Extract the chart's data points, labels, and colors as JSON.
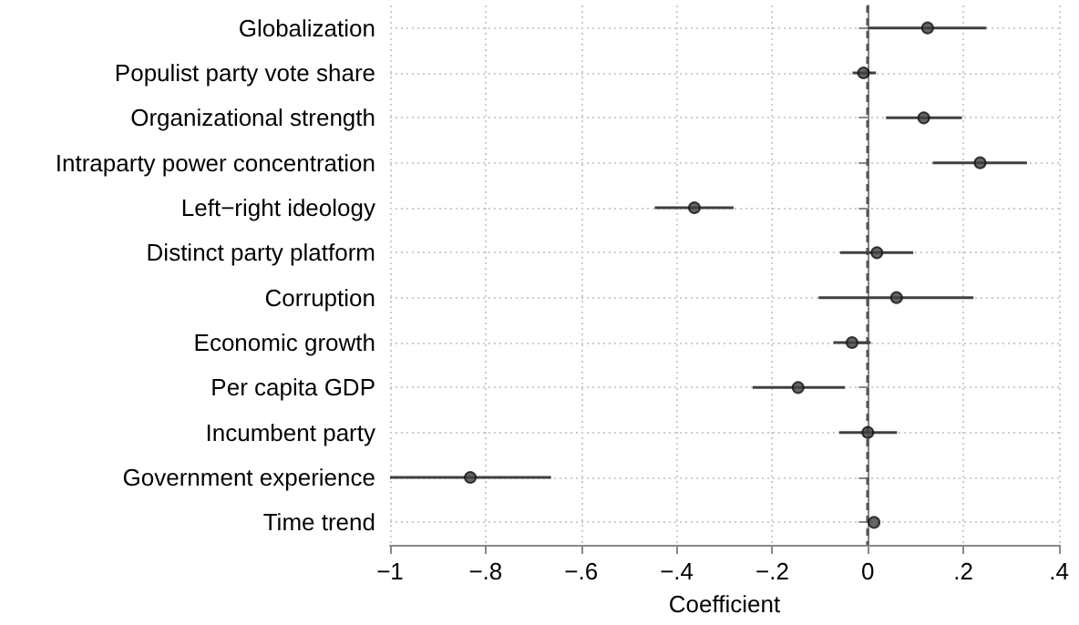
{
  "chart_data": {
    "type": "scatter",
    "orientation": "horizontal",
    "xlabel": "Coefficient",
    "categories": [
      "Globalization",
      "Populist party vote share",
      "Organizational strength",
      "Intraparty power concentration",
      "Left−right ideology",
      "Distinct party platform",
      "Corruption",
      "Economic growth",
      "Per capita GDP",
      "Incumbent party",
      "Government experience",
      "Time trend"
    ],
    "values": [
      0.125,
      -0.009,
      0.117,
      0.235,
      -0.363,
      0.019,
      0.06,
      -0.033,
      -0.146,
      0,
      -0.832,
      0.013
    ],
    "errors": [
      [
        0,
        0.248
      ],
      [
        -0.032,
        0.017
      ],
      [
        0.038,
        0.197
      ],
      [
        0.136,
        0.333
      ],
      [
        -0.446,
        -0.281
      ],
      [
        -0.058,
        0.095
      ],
      [
        -0.103,
        0.221
      ],
      [
        -0.072,
        0.006
      ],
      [
        -0.241,
        -0.048
      ],
      [
        -0.06,
        0.061
      ],
      [
        -1,
        -0.663
      ],
      null
    ],
    "color": "#404040",
    "xlim": [
      -1,
      0.4
    ],
    "xticks": [
      {
        "value": -1,
        "label": "−1"
      },
      {
        "value": -0.8,
        "label": "−.8"
      },
      {
        "value": -0.6,
        "label": "−.6"
      },
      {
        "value": -0.4,
        "label": "−.4"
      },
      {
        "value": -0.2,
        "label": "−.2"
      },
      {
        "value": 0,
        "label": "0"
      },
      {
        "value": 0.2,
        "label": ".2"
      },
      {
        "value": 0.4,
        "label": ".4"
      }
    ],
    "ref_lines": [
      {
        "axis": "x",
        "value": 0,
        "line_style": "dashed",
        "color": "#555555"
      }
    ],
    "grid": true,
    "marker": "circle"
  }
}
